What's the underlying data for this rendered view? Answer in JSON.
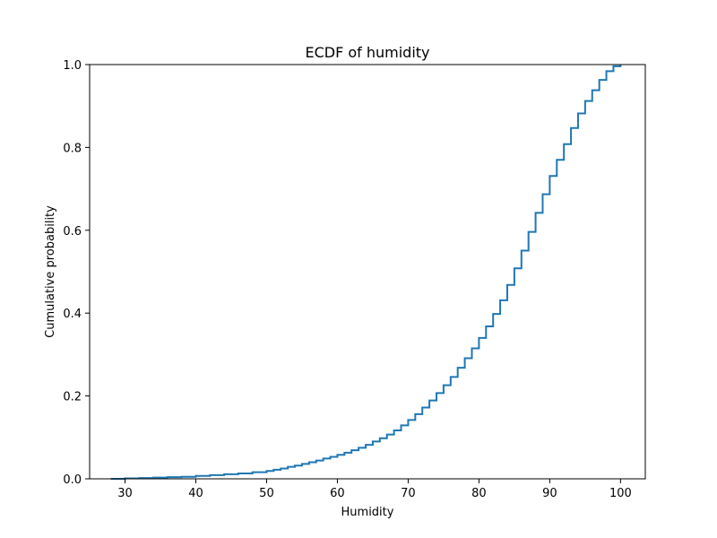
{
  "chart_data": {
    "type": "line",
    "style": "step",
    "title": "ECDF of humidity",
    "xlabel": "Humidity",
    "ylabel": "Cumulative probability",
    "xlim": [
      25,
      103.5
    ],
    "ylim": [
      0.0,
      1.0
    ],
    "xticks": [
      30,
      40,
      50,
      60,
      70,
      80,
      90,
      100
    ],
    "yticks": [
      0.0,
      0.2,
      0.4,
      0.6,
      0.8,
      1.0
    ],
    "xtick_labels": [
      "30",
      "40",
      "50",
      "60",
      "70",
      "80",
      "90",
      "100"
    ],
    "ytick_labels": [
      "0.0",
      "0.2",
      "0.4",
      "0.6",
      "0.8",
      "1.0"
    ],
    "grid": false,
    "line_color": "#1f77b4",
    "series": [
      {
        "x": [
          28,
          30,
          32,
          34,
          36,
          38,
          40,
          42,
          44,
          46,
          48,
          50,
          51,
          52,
          53,
          54,
          55,
          56,
          57,
          58,
          59,
          60,
          61,
          62,
          63,
          64,
          65,
          66,
          67,
          68,
          69,
          70,
          71,
          72,
          73,
          74,
          75,
          76,
          77,
          78,
          79,
          80,
          81,
          82,
          83,
          84,
          85,
          86,
          87,
          88,
          89,
          90,
          91,
          92,
          93,
          94,
          95,
          96,
          97,
          98,
          99,
          100
        ],
        "y": [
          0.0,
          0.001,
          0.002,
          0.003,
          0.004,
          0.005,
          0.007,
          0.009,
          0.011,
          0.013,
          0.016,
          0.019,
          0.022,
          0.025,
          0.029,
          0.032,
          0.036,
          0.04,
          0.044,
          0.049,
          0.053,
          0.058,
          0.063,
          0.069,
          0.075,
          0.082,
          0.09,
          0.098,
          0.107,
          0.117,
          0.129,
          0.142,
          0.156,
          0.172,
          0.189,
          0.207,
          0.226,
          0.246,
          0.268,
          0.291,
          0.315,
          0.34,
          0.368,
          0.398,
          0.431,
          0.468,
          0.508,
          0.551,
          0.596,
          0.642,
          0.687,
          0.731,
          0.77,
          0.808,
          0.847,
          0.882,
          0.912,
          0.938,
          0.963,
          0.984,
          0.996,
          1.0
        ]
      }
    ]
  }
}
